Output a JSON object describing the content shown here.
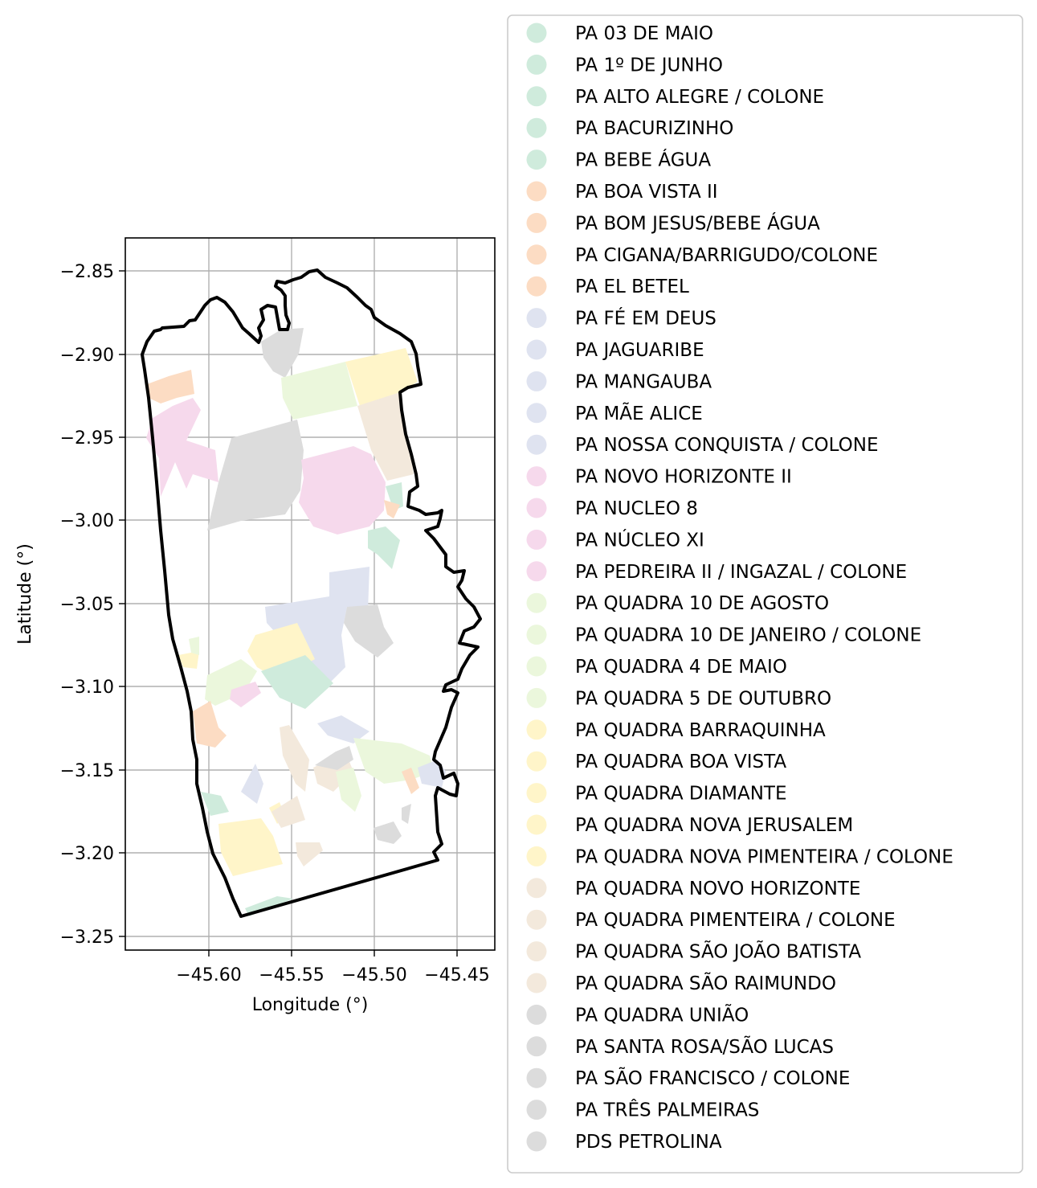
{
  "map": {
    "xlabel": "Longitude (°)",
    "ylabel": "Latitude (°)",
    "x_ticks": [
      "−45.60",
      "−45.55",
      "−45.50",
      "−45.45"
    ],
    "y_ticks": [
      "−2.85",
      "−2.90",
      "−2.95",
      "−3.00",
      "−3.05",
      "−3.10",
      "−3.15",
      "−3.20",
      "−3.25"
    ],
    "xlim": [
      -45.65,
      -45.425
    ],
    "ylim": [
      -3.258,
      -2.83
    ],
    "grid": true,
    "legend_position": "right, outside plot",
    "boundary_color": "#000000"
  },
  "legend": {
    "items": [
      {
        "label": "PA 03 DE MAIO",
        "color": "#cfebdc"
      },
      {
        "label": "PA 1º DE JUNHO",
        "color": "#cfebdc"
      },
      {
        "label": "PA ALTO ALEGRE / COLONE",
        "color": "#cfebdc"
      },
      {
        "label": "PA BACURIZINHO",
        "color": "#cfebdc"
      },
      {
        "label": "PA BEBE ÁGUA",
        "color": "#cfebdc"
      },
      {
        "label": "PA BOA VISTA II",
        "color": "#fcdcc3"
      },
      {
        "label": "PA BOM JESUS/BEBE ÁGUA",
        "color": "#fcdcc3"
      },
      {
        "label": "PA CIGANA/BARRIGUDO/COLONE",
        "color": "#fcdcc3"
      },
      {
        "label": "PA EL BETEL",
        "color": "#fcdcc3"
      },
      {
        "label": "PA FÉ EM DEUS",
        "color": "#dfe3f0"
      },
      {
        "label": "PA JAGUARIBE",
        "color": "#dfe3f0"
      },
      {
        "label": "PA MANGAUBA",
        "color": "#dfe3f0"
      },
      {
        "label": "PA MÃE ALICE",
        "color": "#dfe3f0"
      },
      {
        "label": "PA NOSSA CONQUISTA / COLONE",
        "color": "#dfe3f0"
      },
      {
        "label": "PA NOVO HORIZONTE II",
        "color": "#f6d9ec"
      },
      {
        "label": "PA NUCLEO 8",
        "color": "#f6d9ec"
      },
      {
        "label": "PA NÚCLEO XI",
        "color": "#f6d9ec"
      },
      {
        "label": "PA PEDREIRA II / INGAZAL / COLONE",
        "color": "#f6d9ec"
      },
      {
        "label": "PA QUADRA 10 DE AGOSTO",
        "color": "#ebf7dc"
      },
      {
        "label": "PA QUADRA 10 DE JANEIRO / COLONE",
        "color": "#ebf7dc"
      },
      {
        "label": "PA QUADRA 4 DE MAIO",
        "color": "#ebf7dc"
      },
      {
        "label": "PA QUADRA 5 DE OUTUBRO",
        "color": "#ebf7dc"
      },
      {
        "label": "PA QUADRA BARRAQUINHA",
        "color": "#fff5c9"
      },
      {
        "label": "PA QUADRA BOA VISTA",
        "color": "#fff5c9"
      },
      {
        "label": "PA QUADRA DIAMANTE",
        "color": "#fff5c9"
      },
      {
        "label": "PA QUADRA NOVA JERUSALEM",
        "color": "#fff5c9"
      },
      {
        "label": "PA QUADRA NOVA PIMENTEIRA / COLONE",
        "color": "#fff5c9"
      },
      {
        "label": "PA QUADRA NOVO HORIZONTE",
        "color": "#f3e9dc"
      },
      {
        "label": "PA QUADRA PIMENTEIRA / COLONE",
        "color": "#f3e9dc"
      },
      {
        "label": "PA QUADRA SÃO JOÃO BATISTA",
        "color": "#f3e9dc"
      },
      {
        "label": "PA QUADRA SÃO RAIMUNDO",
        "color": "#f3e9dc"
      },
      {
        "label": "PA QUADRA UNIÃO",
        "color": "#dcdcdc"
      },
      {
        "label": "PA SANTA ROSA/SÃO LUCAS",
        "color": "#dcdcdc"
      },
      {
        "label": "PA SÃO FRANCISCO / COLONE",
        "color": "#dcdcdc"
      },
      {
        "label": "PA TRÊS PALMEIRAS",
        "color": "#dcdcdc"
      },
      {
        "label": "PDS PETROLINA",
        "color": "#dcdcdc"
      }
    ]
  }
}
